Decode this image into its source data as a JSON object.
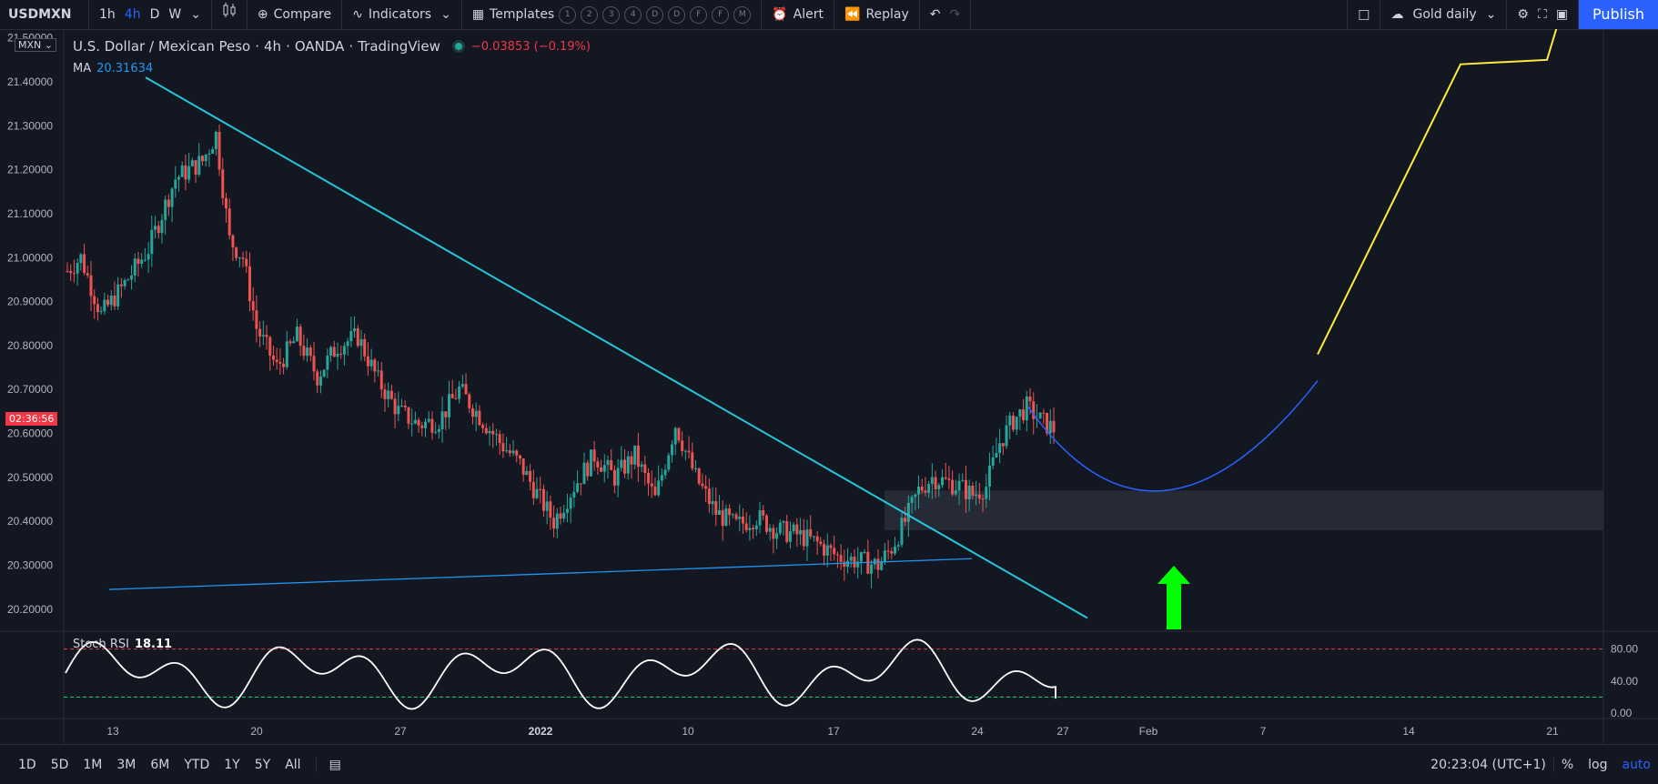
{
  "toolbar": {
    "symbol": "USDMXN",
    "intervals": [
      "1h",
      "4h",
      "D",
      "W"
    ],
    "active_interval": "4h",
    "compare_label": "Compare",
    "indicators_label": "Indicators",
    "templates_label": "Templates",
    "template_slots": [
      "1",
      "2",
      "3",
      "4",
      "D",
      "D",
      "F",
      "F",
      "M"
    ],
    "alert_label": "Alert",
    "replay_label": "Replay",
    "layout_label": "Gold daily",
    "publish_label": "Publish"
  },
  "legend": {
    "title": "U.S. Dollar / Mexican Peso",
    "interval": "4h",
    "broker": "OANDA",
    "source": "TradingView",
    "change": "−0.03853 (−0.19%)",
    "ma_label": "MA",
    "ma_value": "20.31634",
    "currency_badge": "MXN",
    "countdown": "02:36:56"
  },
  "stoch": {
    "label": "Stoch RSI",
    "value": "18.11"
  },
  "bottom": {
    "ranges": [
      "1D",
      "5D",
      "1M",
      "3M",
      "6M",
      "YTD",
      "1Y",
      "5Y",
      "All"
    ],
    "clock": "20:23:04 (UTC+1)",
    "pct": "%",
    "log": "log",
    "auto": "auto"
  },
  "colors": {
    "background": "#131722",
    "up": "#26a69a",
    "down": "#ef5350",
    "trendline": "#26c6da",
    "support": "#2196f3",
    "projection_curve": "#2962ff",
    "projection_line": "#ffeb3b",
    "arrow": "#00ff00",
    "stoch": "#ffffff"
  },
  "chart_data": {
    "type": "candlestick",
    "ylim": [
      20.15,
      21.52
    ],
    "y_ticks": [
      "21.50000",
      "21.40000",
      "21.30000",
      "21.20000",
      "21.10000",
      "21.00000",
      "20.90000",
      "20.80000",
      "20.70000",
      "20.60000",
      "20.50000",
      "20.40000",
      "20.30000",
      "20.20000"
    ],
    "x_ticks": [
      "13",
      "20",
      "27",
      "2022",
      "10",
      "17",
      "24",
      "27",
      "Feb",
      "7",
      "14",
      "21"
    ],
    "close_path": [
      [
        0,
        20.97
      ],
      [
        2,
        21.0
      ],
      [
        5,
        20.87
      ],
      [
        8,
        20.93
      ],
      [
        12,
        21.02
      ],
      [
        16,
        21.18
      ],
      [
        20,
        21.22
      ],
      [
        22,
        21.28
      ],
      [
        24,
        21.04
      ],
      [
        26,
        21.0
      ],
      [
        28,
        20.84
      ],
      [
        31,
        20.75
      ],
      [
        34,
        20.82
      ],
      [
        37,
        20.73
      ],
      [
        40,
        20.8
      ],
      [
        43,
        20.82
      ],
      [
        46,
        20.72
      ],
      [
        49,
        20.65
      ],
      [
        52,
        20.62
      ],
      [
        55,
        20.63
      ],
      [
        58,
        20.7
      ],
      [
        61,
        20.64
      ],
      [
        64,
        20.58
      ],
      [
        67,
        20.53
      ],
      [
        70,
        20.45
      ],
      [
        72,
        20.4
      ],
      [
        75,
        20.48
      ],
      [
        78,
        20.55
      ],
      [
        81,
        20.5
      ],
      [
        84,
        20.55
      ],
      [
        87,
        20.45
      ],
      [
        90,
        20.62
      ],
      [
        93,
        20.5
      ],
      [
        96,
        20.42
      ],
      [
        99,
        20.39
      ],
      [
        102,
        20.41
      ],
      [
        105,
        20.38
      ],
      [
        108,
        20.37
      ],
      [
        111,
        20.35
      ],
      [
        114,
        20.32
      ],
      [
        117,
        20.31
      ],
      [
        120,
        20.3
      ],
      [
        122,
        20.34
      ],
      [
        124,
        20.4
      ],
      [
        126,
        20.47
      ],
      [
        128,
        20.5
      ],
      [
        130,
        20.49
      ],
      [
        132,
        20.48
      ],
      [
        134,
        20.46
      ],
      [
        136,
        20.48
      ],
      [
        138,
        20.58
      ],
      [
        140,
        20.63
      ],
      [
        142,
        20.66
      ],
      [
        144,
        20.63
      ],
      [
        146,
        20.61
      ]
    ],
    "ma_value": 20.31634,
    "zone": [
      20.38,
      20.47
    ],
    "stoch_rsi": {
      "ylim": [
        0,
        100
      ],
      "y_ticks": [
        "80.00",
        "40.00",
        "0.00"
      ],
      "upper_band": 80,
      "lower_band": 20,
      "last": 18.11
    }
  }
}
